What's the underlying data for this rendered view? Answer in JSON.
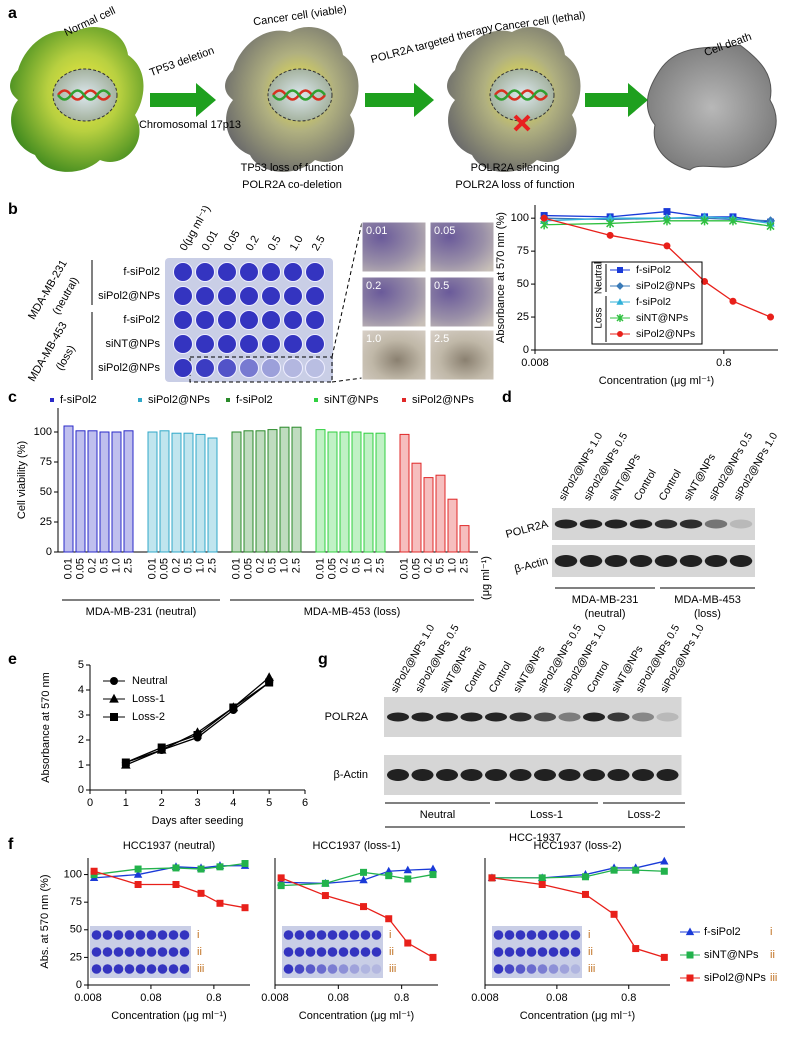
{
  "figure": {
    "a": {
      "label": "a",
      "normal": "Normal cell",
      "step1": "TP53 deletion",
      "chromosome": "Chromosomal 17p13",
      "viable": "Cancer cell (viable)",
      "viable_notes": [
        "TP53 loss of function",
        "POLR2A co-deletion"
      ],
      "step2": "POLR2A targeted therapy",
      "lethal": "Cancer cell (lethal)",
      "lethal_notes": [
        "POLR2A silencing",
        "POLR2A loss of function"
      ],
      "death": "Cell death"
    },
    "b": {
      "label": "b",
      "plate_header": [
        "0(μg ml⁻¹)",
        "0.01",
        "0.05",
        "0.2",
        "0.5",
        "1.0",
        "2.5"
      ],
      "rows": [
        "f-siPol2",
        "siPol2@NPs",
        "f-siPol2",
        "siNT@NPs",
        "siPol2@NPs"
      ],
      "lines": [
        "MDA-MB-231",
        "(neutral)",
        "MDA-MB-453",
        "(loss)"
      ],
      "micro": [
        "0.01",
        "0.05",
        "0.2",
        "0.5",
        "1.0",
        "2.5"
      ]
    },
    "c": {
      "label": "c"
    },
    "d": {
      "label": "d",
      "lanes": [
        "siPol2@NPs 1.0",
        "siPol2@NPs 0.5",
        "siNT@NPs",
        "Control",
        "Control",
        "siNT@NPs",
        "siPol2@NPs 0.5",
        "siPol2@NPs 1.0"
      ],
      "rows": [
        "POLR2A",
        "β-Actin"
      ],
      "groups": [
        [
          "MDA-MB-231",
          "(neutral)"
        ],
        [
          "MDA-MB-453",
          "(loss)"
        ]
      ]
    },
    "e": {
      "label": "e"
    },
    "g": {
      "label": "g",
      "lanes": [
        "siPol2@NPs 1.0",
        "siPol2@NPs 0.5",
        "siNT@NPs",
        "Control",
        "Control",
        "siNT@NPs",
        "siPol2@NPs 0.5",
        "siPol2@NPs 1.0",
        "Control",
        "siNT@NPs",
        "siPol2@NPs 0.5",
        "siPol2@NPs 1.0"
      ],
      "rows": [
        "POLR2A",
        "β-Actin"
      ],
      "groups": [
        "Neutral",
        "Loss-1",
        "Loss-2"
      ],
      "cell_line": "HCC-1937"
    },
    "f": {
      "label": "f"
    }
  },
  "chart_data": [
    {
      "type": "line",
      "xscale": "log",
      "ylabel": "Absorbance at 570 nm (%)",
      "xlabel": "Concentration (μg ml⁻¹)",
      "x": [
        0.01,
        0.05,
        0.2,
        0.5,
        1.0,
        2.5
      ],
      "xlim": [
        0.008,
        3
      ],
      "xticks": [
        0.008,
        0.8
      ],
      "ylim": [
        0,
        110
      ],
      "yticks": [
        0,
        25,
        50,
        75,
        100
      ],
      "series": [
        {
          "name": "f-siPol2",
          "group": "Neutral",
          "color": "#1a3ad8",
          "marker": "square",
          "values": [
            102,
            101,
            105,
            101,
            101,
            97
          ]
        },
        {
          "name": "siPol2@NPs",
          "group": "Neutral",
          "color": "#3a7ab8",
          "marker": "diamond",
          "values": [
            100,
            99,
            100,
            100,
            99,
            98
          ]
        },
        {
          "name": "f-siPol2",
          "group": "Loss",
          "color": "#30b0d8",
          "marker": "triangle",
          "values": [
            98,
            100,
            100,
            101,
            100,
            96
          ]
        },
        {
          "name": "siNT@NPs",
          "group": "Loss",
          "color": "#30c040",
          "marker": "star",
          "values": [
            95,
            96,
            98,
            98,
            98,
            94
          ]
        },
        {
          "name": "siPol2@NPs",
          "group": "Loss",
          "color": "#e8201a",
          "marker": "circle",
          "values": [
            100,
            87,
            79,
            52,
            37,
            25
          ]
        }
      ]
    },
    {
      "type": "bar",
      "ylabel": "Cell viability (%)",
      "categories": [
        "0.01",
        "0.05",
        "0.2",
        "0.5",
        "1.0",
        "2.5"
      ],
      "ylim": [
        0,
        120
      ],
      "yticks": [
        0,
        25,
        50,
        75,
        100
      ],
      "group_labels": [
        "MDA-MB-231 (neutral)",
        "MDA-MB-453 (loss)"
      ],
      "unit": "(μg ml⁻¹)",
      "series": [
        {
          "name": "f-siPol2",
          "color": "#2a2ac8",
          "values": [
            105,
            101,
            101,
            100,
            100,
            101
          ]
        },
        {
          "name": "siPol2@NPs",
          "color": "#30a8c8",
          "values": [
            100,
            101,
            99,
            99,
            98,
            95
          ]
        },
        {
          "name": "f-siPol2",
          "color": "#2a8a2a",
          "values": [
            100,
            101,
            101,
            102,
            104,
            104
          ]
        },
        {
          "name": "siNT@NPs",
          "color": "#30d040",
          "values": [
            102,
            100,
            100,
            100,
            99,
            99
          ]
        },
        {
          "name": "siPol2@NPs",
          "color": "#e02828",
          "values": [
            98,
            74,
            62,
            64,
            44,
            22
          ]
        }
      ]
    },
    {
      "type": "line",
      "xlabel": "Days after seeding",
      "ylabel": "Absorbance at 570 nm",
      "x": [
        1,
        2,
        3,
        4,
        5
      ],
      "xlim": [
        0,
        6
      ],
      "xticks": [
        0,
        1,
        2,
        3,
        4,
        5,
        6
      ],
      "ylim": [
        0,
        5
      ],
      "yticks": [
        0,
        1,
        2,
        3,
        4,
        5
      ],
      "series": [
        {
          "name": "Neutral",
          "color": "#000000",
          "marker": "circle",
          "values": [
            1.1,
            1.6,
            2.1,
            3.2,
            4.3
          ]
        },
        {
          "name": "Loss-1",
          "color": "#000000",
          "marker": "triangle",
          "values": [
            1.0,
            1.6,
            2.3,
            3.3,
            4.5
          ]
        },
        {
          "name": "Loss-2",
          "color": "#000000",
          "marker": "square",
          "values": [
            1.1,
            1.7,
            2.2,
            3.3,
            4.3
          ]
        }
      ]
    },
    {
      "type": "line",
      "xscale": "log",
      "title": "HCC1937 (neutral)",
      "ylabel": "Abs. at 570 nm (%)",
      "xlabel": "Concentration (μg ml⁻¹)",
      "x": [
        0.01,
        0.05,
        0.2,
        0.5,
        1.0,
        2.5
      ],
      "xlim": [
        0.008,
        3
      ],
      "xticks": [
        0.008,
        0.08,
        0.8
      ],
      "ylim": [
        0,
        115
      ],
      "yticks": [
        0,
        25,
        50,
        75,
        100
      ],
      "inset_labels": [
        "i",
        "ii",
        "iii"
      ],
      "series": [
        {
          "color": "#1a3ad8",
          "marker": "triangle",
          "values": [
            97,
            100,
            107,
            106,
            108,
            108
          ]
        },
        {
          "color": "#22b24c",
          "marker": "square",
          "values": [
            100,
            105,
            106,
            105,
            107,
            110
          ]
        },
        {
          "color": "#e8201a",
          "marker": "square",
          "values": [
            103,
            91,
            91,
            83,
            74,
            70
          ]
        }
      ]
    },
    {
      "type": "line",
      "xscale": "log",
      "title": "HCC1937 (loss-1)",
      "xlabel": "Concentration (μg ml⁻¹)",
      "x": [
        0.01,
        0.05,
        0.2,
        0.5,
        1.0,
        2.5
      ],
      "xlim": [
        0.008,
        3
      ],
      "xticks": [
        0.008,
        0.08,
        0.8
      ],
      "ylim": [
        0,
        115
      ],
      "inset_labels": [
        "i",
        "ii",
        "iii"
      ],
      "series": [
        {
          "color": "#1a3ad8",
          "marker": "triangle",
          "values": [
            93,
            92,
            95,
            103,
            104,
            105
          ]
        },
        {
          "color": "#22b24c",
          "marker": "square",
          "values": [
            90,
            92,
            102,
            99,
            96,
            100
          ]
        },
        {
          "color": "#e8201a",
          "marker": "square",
          "values": [
            97,
            81,
            71,
            60,
            38,
            25
          ]
        }
      ]
    },
    {
      "type": "line",
      "xscale": "log",
      "title": "HCC1937 (loss-2)",
      "xlabel": "Concentration (μg ml⁻¹)",
      "x": [
        0.01,
        0.05,
        0.2,
        0.5,
        1.0,
        2.5
      ],
      "xlim": [
        0.008,
        3
      ],
      "xticks": [
        0.008,
        0.08,
        0.8
      ],
      "ylim": [
        0,
        115
      ],
      "inset_labels": [
        "i",
        "ii",
        "iii"
      ],
      "series": [
        {
          "name": "f-siPol2",
          "tag": "i",
          "color": "#1a3ad8",
          "marker": "triangle",
          "values": [
            97,
            97,
            100,
            106,
            106,
            112
          ]
        },
        {
          "name": "siNT@NPs",
          "tag": "ii",
          "color": "#22b24c",
          "marker": "square",
          "values": [
            97,
            97,
            98,
            104,
            104,
            103
          ]
        },
        {
          "name": "siPol2@NPs",
          "tag": "iii",
          "color": "#e8201a",
          "marker": "square",
          "values": [
            97,
            91,
            82,
            64,
            33,
            25
          ]
        }
      ]
    }
  ]
}
